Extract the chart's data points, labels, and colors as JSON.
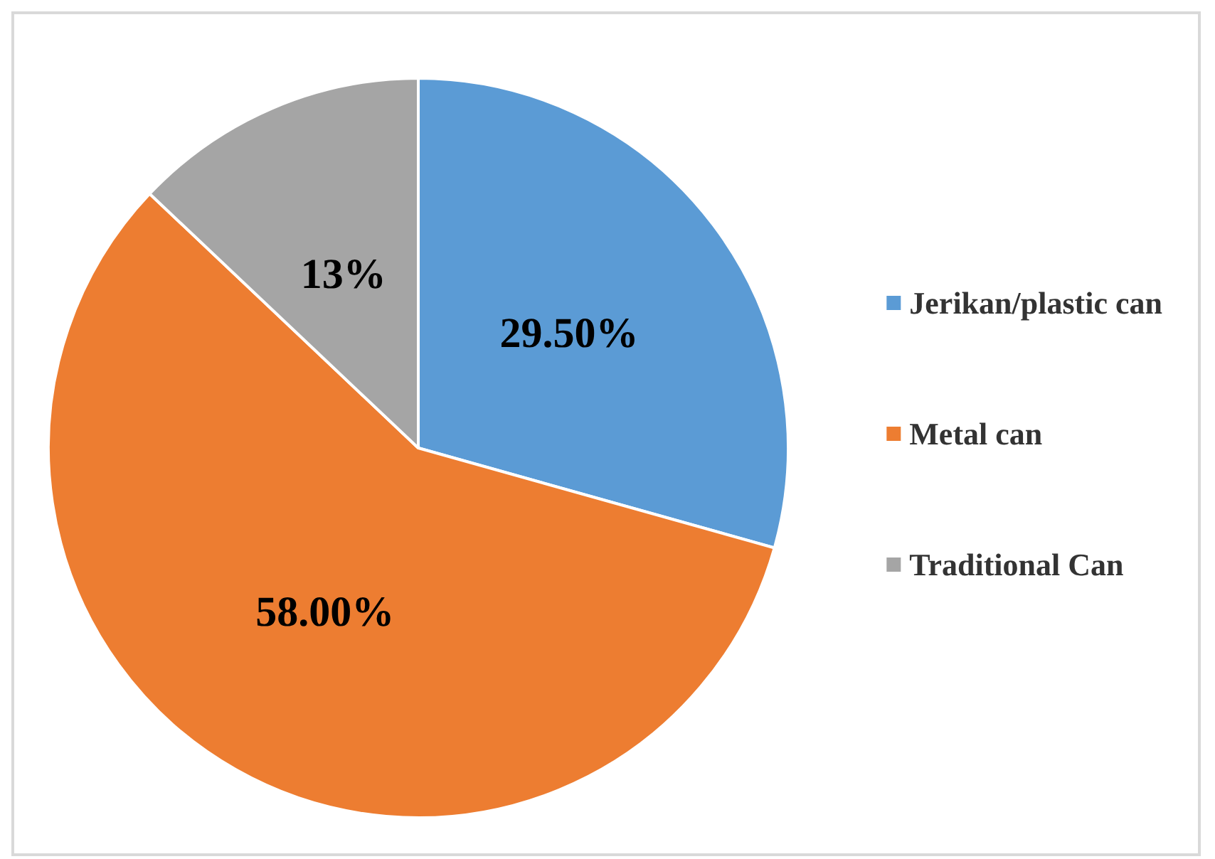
{
  "chart_data": {
    "type": "pie",
    "categories": [
      "Jerikan/plastic can",
      "Metal can",
      "Traditional Can"
    ],
    "values": [
      29.5,
      58,
      13
    ],
    "value_labels": [
      "29.50%",
      "58.00%",
      "13%"
    ],
    "colors": [
      "#5b9bd5",
      "#ed7d31",
      "#a5a5a5"
    ],
    "legend": "right"
  }
}
